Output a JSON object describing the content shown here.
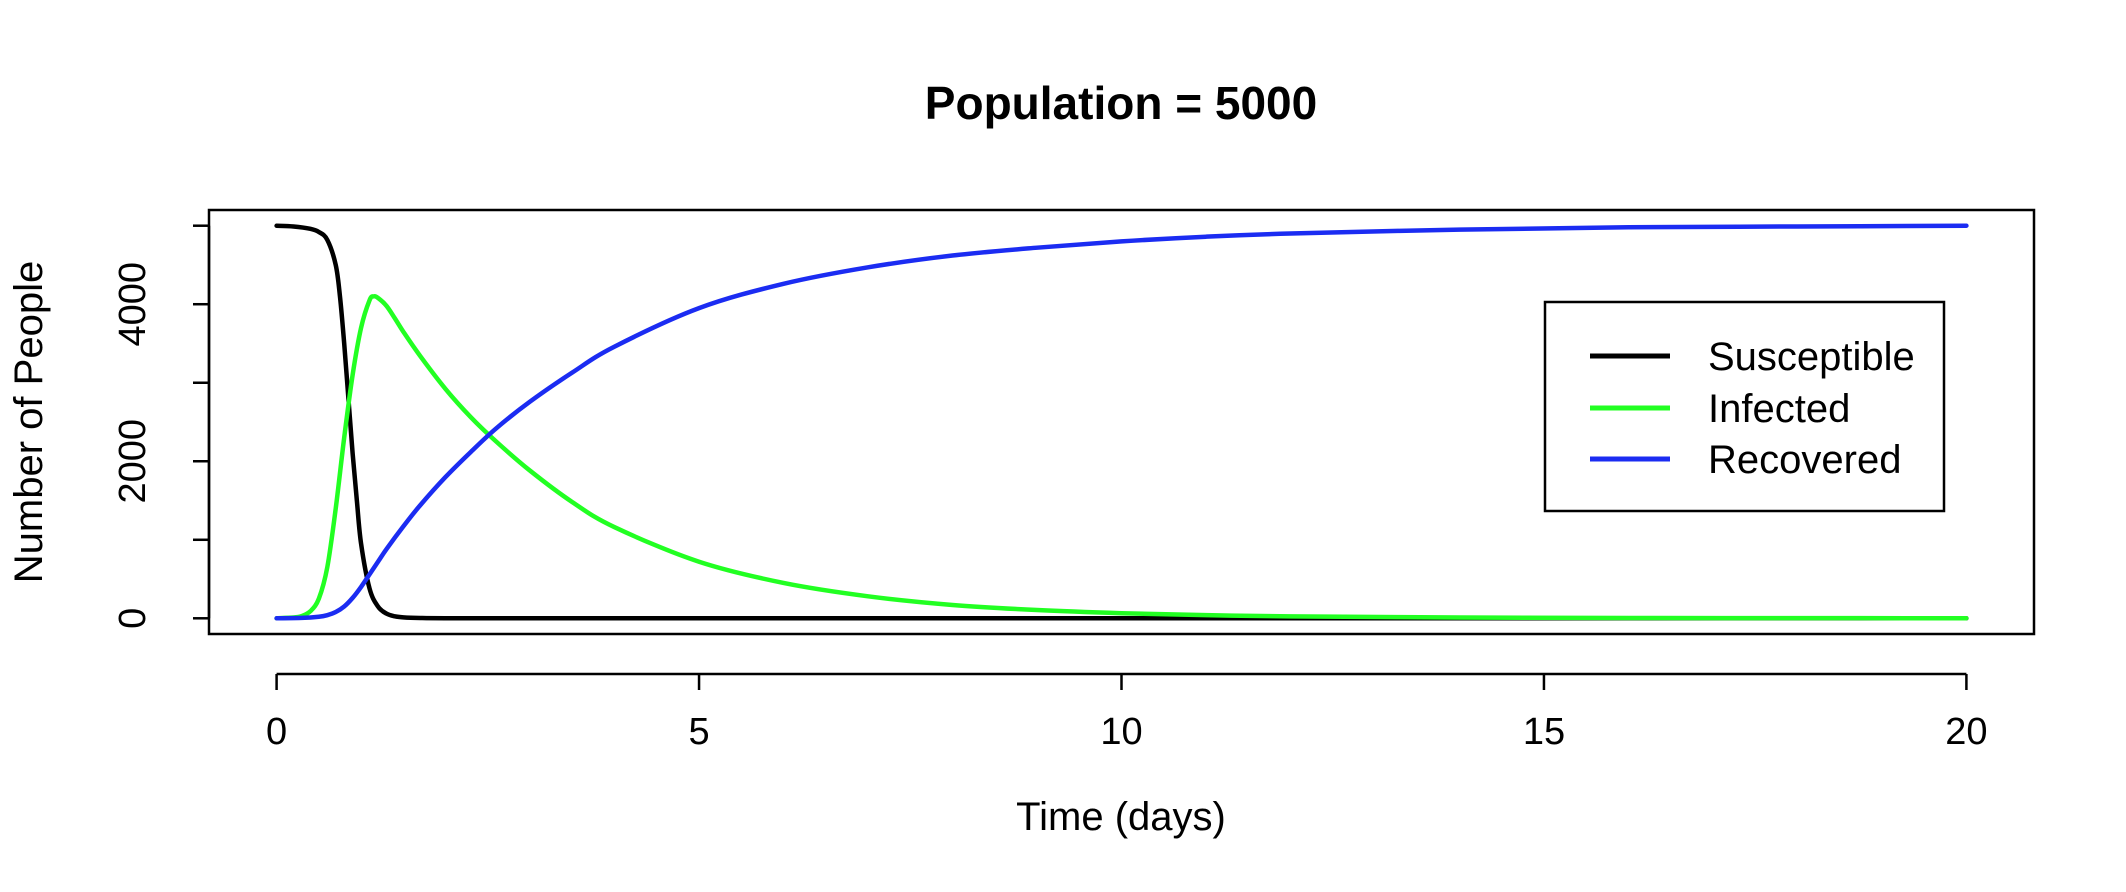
{
  "chart_data": {
    "type": "line",
    "title": "Population = 5000",
    "xlabel": "Time (days)",
    "ylabel": "Number of People",
    "xlim": [
      -0.8,
      20.8
    ],
    "ylim": [
      -200,
      5200
    ],
    "x_ticks": [
      0,
      5,
      10,
      15,
      20
    ],
    "x_tick_labels": [
      "0",
      "5",
      "10",
      "15",
      "20"
    ],
    "y_ticks": [
      0,
      1000,
      2000,
      3000,
      4000,
      5000
    ],
    "y_tick_labels": [
      "0",
      "2000",
      "4000"
    ],
    "y_tick_label_values": [
      0,
      2000,
      4000
    ],
    "grid": false,
    "legend_position": "right",
    "series": [
      {
        "name": "Susceptible",
        "color": "#000000",
        "x": [
          0,
          0.2,
          0.4,
          0.5,
          0.6,
          0.7,
          0.75,
          0.8,
          0.85,
          0.9,
          0.95,
          1.0,
          1.1,
          1.2,
          1.3,
          1.4,
          1.5,
          1.7,
          2.0,
          3,
          5,
          10,
          15,
          20
        ],
        "y": [
          4999,
          4990,
          4960,
          4920,
          4820,
          4500,
          4100,
          3500,
          2800,
          2100,
          1500,
          950,
          380,
          150,
          60,
          25,
          12,
          4,
          1,
          0,
          0,
          0,
          0,
          0
        ]
      },
      {
        "name": "Infected",
        "color": "#22ff22",
        "x": [
          0,
          0.2,
          0.3,
          0.4,
          0.5,
          0.6,
          0.7,
          0.8,
          0.9,
          1.0,
          1.1,
          1.15,
          1.2,
          1.3,
          1.4,
          1.5,
          1.7,
          2.0,
          2.3,
          2.6,
          3.0,
          3.5,
          4,
          5,
          6,
          7,
          8,
          9,
          10,
          11,
          12,
          14,
          16,
          18,
          20
        ],
        "y": [
          1,
          10,
          30,
          90,
          250,
          650,
          1400,
          2300,
          3100,
          3700,
          4050,
          4100,
          4080,
          3980,
          3820,
          3650,
          3340,
          2920,
          2560,
          2250,
          1880,
          1480,
          1160,
          720,
          450,
          280,
          170,
          105,
          65,
          40,
          25,
          10,
          4,
          2,
          1
        ]
      },
      {
        "name": "Recovered",
        "color": "#1b2cf2",
        "x": [
          0,
          0.3,
          0.5,
          0.6,
          0.7,
          0.8,
          0.9,
          1.0,
          1.1,
          1.2,
          1.3,
          1.5,
          1.7,
          2.0,
          2.3,
          2.6,
          3.0,
          3.5,
          4,
          5,
          6,
          7,
          8,
          9,
          10,
          11,
          12,
          14,
          16,
          18,
          20
        ],
        "y": [
          0,
          5,
          20,
          40,
          80,
          150,
          260,
          400,
          560,
          720,
          880,
          1170,
          1440,
          1800,
          2120,
          2420,
          2760,
          3130,
          3460,
          3950,
          4260,
          4470,
          4620,
          4720,
          4800,
          4860,
          4900,
          4950,
          4980,
          4990,
          5000
        ]
      }
    ]
  }
}
